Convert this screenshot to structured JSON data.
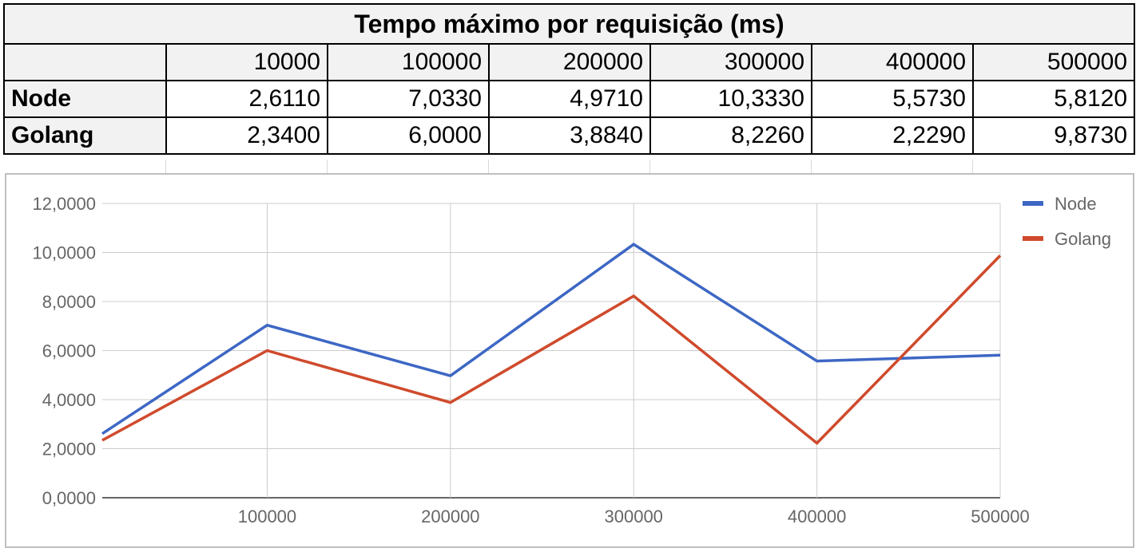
{
  "table": {
    "title": "Tempo máximo por requisição (ms)",
    "columns": [
      "10000",
      "100000",
      "200000",
      "300000",
      "400000",
      "500000"
    ],
    "rows": [
      {
        "label": "Node",
        "values": [
          "2,6110",
          "7,0330",
          "4,9710",
          "10,3330",
          "5,5730",
          "5,8120"
        ]
      },
      {
        "label": "Golang",
        "values": [
          "2,3400",
          "6,0000",
          "3,8840",
          "8,2260",
          "2,2290",
          "9,8730"
        ]
      }
    ]
  },
  "chart_data": {
    "type": "line",
    "x": [
      10000,
      100000,
      200000,
      300000,
      400000,
      500000
    ],
    "x_tick_labels": [
      "100000",
      "200000",
      "300000",
      "400000",
      "500000"
    ],
    "xlim": [
      10000,
      500000
    ],
    "y_tick_labels": [
      "0,0000",
      "2,0000",
      "4,0000",
      "6,0000",
      "8,0000",
      "10,0000",
      "12,0000"
    ],
    "ylim": [
      0,
      12
    ],
    "series": [
      {
        "name": "Node",
        "color": "#3d67c4",
        "values": [
          2.611,
          7.033,
          4.971,
          10.333,
          5.573,
          5.812
        ]
      },
      {
        "name": "Golang",
        "color": "#cf4a2c",
        "values": [
          2.34,
          6.0,
          3.884,
          8.226,
          2.229,
          9.873
        ]
      }
    ],
    "legend_position": "top-right",
    "grid": true
  }
}
